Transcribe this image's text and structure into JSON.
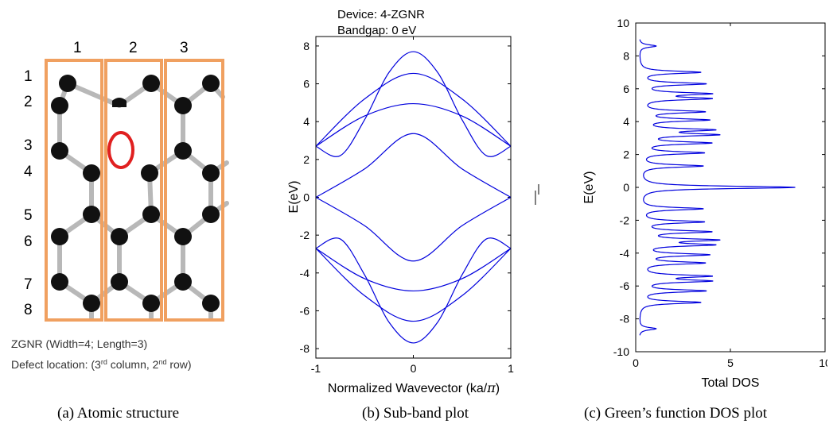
{
  "panel_a": {
    "column_numbers": [
      "1",
      "2",
      "3"
    ],
    "row_numbers": [
      "1",
      "2",
      "3",
      "4",
      "5",
      "6",
      "7",
      "8"
    ],
    "caption_line1": "ZGNR (Width=4; Length=3)",
    "caption_line2_prefix": "Defect location: (3",
    "caption_line2_sup1": "rd",
    "caption_line2_mid": " column, 2",
    "caption_line2_sup2": "nd",
    "caption_line2_suffix": " row)",
    "colors": {
      "frame": "#f0a060",
      "defect": "#e02020",
      "atom": "#111111",
      "bond": "#b8b8b8"
    }
  },
  "captions": {
    "a": "(a) Atomic structure",
    "b": "(b) Sub-band plot",
    "c": "(c) Green’s function DOS plot"
  },
  "chart_data": [
    {
      "type": "line",
      "title_line1": "Device: 4-ZGNR",
      "title_line2": "Bandgap: 0 eV",
      "xlabel_main": "Normalized Wavevector (ka/",
      "xlabel_pi": "π",
      "xlabel_close": ")",
      "ylabel": "E(eV)",
      "xlim": [
        -1,
        1
      ],
      "ylim": [
        -8.5,
        8.5
      ],
      "x_ticks": [
        -1,
        0,
        1
      ],
      "y_ticks": [
        -8,
        -6,
        -4,
        -2,
        0,
        2,
        4,
        6,
        8
      ],
      "line_color": "#0000dd",
      "series": [
        {
          "values_at": {
            "x": [
              -1,
              -0.75,
              -0.5,
              -0.25,
              0,
              0.25,
              0.5,
              0.75,
              1
            ],
            "y": [
              2.7,
              2.2,
              4.1,
              6.6,
              7.7,
              6.6,
              4.1,
              2.2,
              2.7
            ]
          }
        },
        {
          "values_at": {
            "x": [
              -1,
              -0.5,
              0,
              0.5,
              1
            ],
            "y": [
              2.7,
              5.2,
              6.55,
              5.2,
              2.7
            ]
          }
        },
        {
          "values_at": {
            "x": [
              -1,
              -0.5,
              0,
              0.5,
              1
            ],
            "y": [
              2.7,
              4.3,
              4.95,
              4.3,
              2.7
            ]
          }
        },
        {
          "values_at": {
            "x": [
              -1,
              -0.5,
              0,
              0.5,
              1
            ],
            "y": [
              0,
              1.5,
              3.37,
              1.5,
              0
            ]
          }
        },
        {
          "values_at": {
            "x": [
              -1,
              -0.5,
              0,
              0.5,
              1
            ],
            "y": [
              0,
              -1.5,
              -3.37,
              -1.5,
              0
            ]
          }
        },
        {
          "values_at": {
            "x": [
              -1,
              -0.5,
              0,
              0.5,
              1
            ],
            "y": [
              -2.7,
              -4.3,
              -4.95,
              -4.3,
              -2.7
            ]
          }
        },
        {
          "values_at": {
            "x": [
              -1,
              -0.5,
              0,
              0.5,
              1
            ],
            "y": [
              -2.7,
              -5.2,
              -6.55,
              -5.2,
              -2.7
            ]
          }
        },
        {
          "values_at": {
            "x": [
              -1,
              -0.75,
              -0.5,
              -0.25,
              0,
              0.25,
              0.5,
              0.75,
              1
            ],
            "y": [
              -2.7,
              -2.2,
              -4.1,
              -6.6,
              -7.7,
              -6.6,
              -4.1,
              -2.2,
              -2.7
            ]
          }
        }
      ]
    },
    {
      "type": "line",
      "xlabel": "Total DOS",
      "ylabel": "E(eV)",
      "xlim": [
        0,
        10
      ],
      "ylim": [
        -10,
        10
      ],
      "x_ticks": [
        0,
        5,
        10
      ],
      "y_ticks": [
        -10,
        -8,
        -6,
        -4,
        -2,
        0,
        2,
        4,
        6,
        8,
        10
      ],
      "line_color": "#0000dd",
      "baseline": 0.15,
      "peaks": [
        {
          "E": 0,
          "dos": 8.2
        },
        {
          "E": 1.3,
          "dos": 3.3
        },
        {
          "E": -1.3,
          "dos": 3.3
        },
        {
          "E": 2.1,
          "dos": 3.3
        },
        {
          "E": -2.1,
          "dos": 3.3
        },
        {
          "E": 2.7,
          "dos": 3.6
        },
        {
          "E": -2.7,
          "dos": 3.6
        },
        {
          "E": 3.2,
          "dos": 3.8
        },
        {
          "E": -3.2,
          "dos": 3.8
        },
        {
          "E": 3.5,
          "dos": 3.6
        },
        {
          "E": -3.5,
          "dos": 3.6
        },
        {
          "E": 4.1,
          "dos": 3.5
        },
        {
          "E": -4.1,
          "dos": 3.5
        },
        {
          "E": 4.6,
          "dos": 3.3
        },
        {
          "E": -4.6,
          "dos": 3.3
        },
        {
          "E": 5.4,
          "dos": 3.5
        },
        {
          "E": -5.4,
          "dos": 3.5
        },
        {
          "E": 5.7,
          "dos": 3.5
        },
        {
          "E": -5.7,
          "dos": 3.5
        },
        {
          "E": 6.3,
          "dos": 3.4
        },
        {
          "E": -6.3,
          "dos": 3.4
        },
        {
          "E": 7.0,
          "dos": 3.2
        },
        {
          "E": -7.0,
          "dos": 3.2
        },
        {
          "E": 8.6,
          "dos": 0.9
        },
        {
          "E": -8.6,
          "dos": 0.9
        }
      ]
    }
  ]
}
